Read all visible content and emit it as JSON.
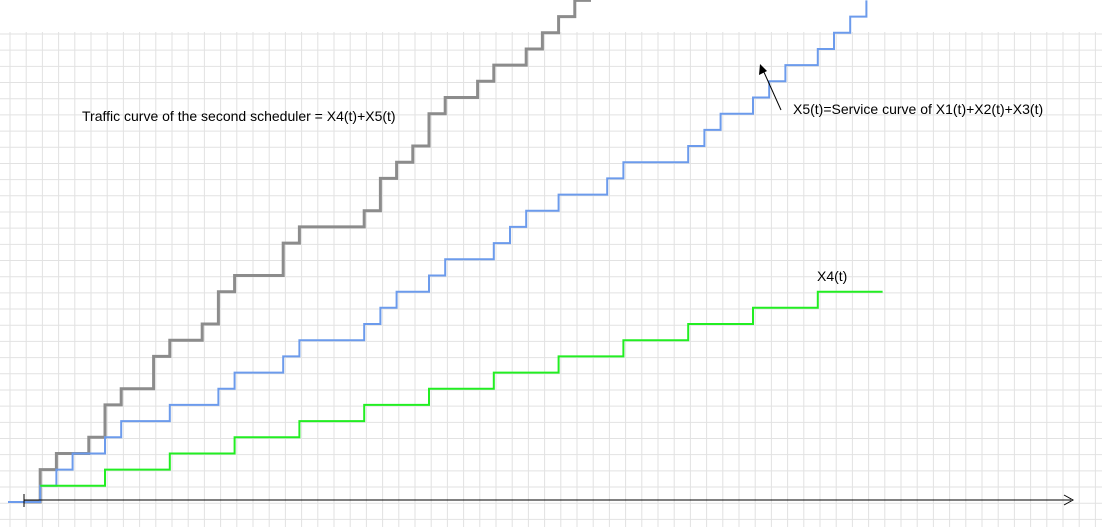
{
  "chart_data": {
    "type": "line",
    "step": true,
    "title": "",
    "xlabel": "",
    "ylabel": "",
    "grid": true,
    "xlim": [
      0,
      66
    ],
    "ylim": [
      0,
      30
    ],
    "series": [
      {
        "name": "Traffic curve of the second scheduler = X4(t)+X5(t)",
        "color": "#8c8c8c",
        "x": [
          0,
          1,
          1,
          2,
          2,
          4,
          4,
          5,
          5,
          6,
          6,
          8,
          8,
          9,
          9,
          11,
          11,
          12,
          12,
          13,
          13,
          16,
          16,
          17,
          17,
          21,
          21,
          22,
          22,
          23,
          23,
          24,
          24,
          25,
          25,
          26,
          26,
          28,
          28,
          29,
          29,
          31,
          31,
          32,
          32,
          33,
          33,
          34,
          34,
          35
        ],
        "y": [
          0,
          0,
          2,
          2,
          3,
          3,
          4,
          4,
          6,
          6,
          7,
          7,
          9,
          9,
          10,
          10,
          11,
          11,
          13,
          13,
          14,
          14,
          16,
          16,
          17,
          17,
          18,
          18,
          20,
          20,
          21,
          21,
          22,
          22,
          24,
          24,
          25,
          25,
          26,
          26,
          27,
          27,
          28,
          28,
          29,
          29,
          30,
          30,
          31,
          31
        ]
      },
      {
        "name": "X5(t)=Service curve of X1(t)+X2(t)+X3(t)",
        "color": "#6c9bec",
        "x": [
          0,
          1,
          1,
          2,
          2,
          3,
          3,
          5,
          5,
          6,
          6,
          9,
          9,
          12,
          12,
          13,
          13,
          16,
          16,
          17,
          17,
          21,
          21,
          22,
          22,
          23,
          23,
          25,
          25,
          26,
          26,
          29,
          29,
          30,
          30,
          31,
          31,
          33,
          33,
          36,
          36,
          37,
          37,
          41,
          41,
          42,
          42,
          43,
          43,
          45,
          45,
          46,
          46,
          47,
          47,
          49,
          49,
          50,
          50,
          51,
          51,
          52,
          52
        ],
        "y": [
          0,
          0,
          1,
          1,
          2,
          2,
          3,
          3,
          4,
          4,
          5,
          5,
          6,
          6,
          7,
          7,
          8,
          8,
          9,
          9,
          10,
          10,
          11,
          11,
          12,
          12,
          13,
          13,
          14,
          14,
          15,
          15,
          16,
          16,
          17,
          17,
          18,
          18,
          19,
          19,
          20,
          20,
          21,
          21,
          22,
          22,
          23,
          23,
          24,
          24,
          25,
          25,
          26,
          26,
          27,
          27,
          28,
          28,
          29,
          29,
          30,
          30,
          31
        ]
      },
      {
        "name": "X4(t)",
        "color": "#22ee22",
        "x": [
          1,
          5,
          5,
          9,
          9,
          13,
          13,
          17,
          17,
          21,
          21,
          25,
          25,
          29,
          29,
          33,
          33,
          37,
          37,
          41,
          41,
          45,
          45,
          49,
          49,
          53
        ],
        "y": [
          1,
          1,
          2,
          2,
          3,
          3,
          4,
          4,
          5,
          5,
          6,
          6,
          7,
          7,
          8,
          8,
          9,
          9,
          10,
          10,
          11,
          11,
          12,
          12,
          13,
          13
        ]
      }
    ],
    "annotations": {
      "traffic": "Traffic curve of the second scheduler = X4(t)+X5(t)",
      "service": "X5(t)=Service curve of X1(t)+X2(t)+X3(t)",
      "x4": "X4(t)"
    }
  }
}
